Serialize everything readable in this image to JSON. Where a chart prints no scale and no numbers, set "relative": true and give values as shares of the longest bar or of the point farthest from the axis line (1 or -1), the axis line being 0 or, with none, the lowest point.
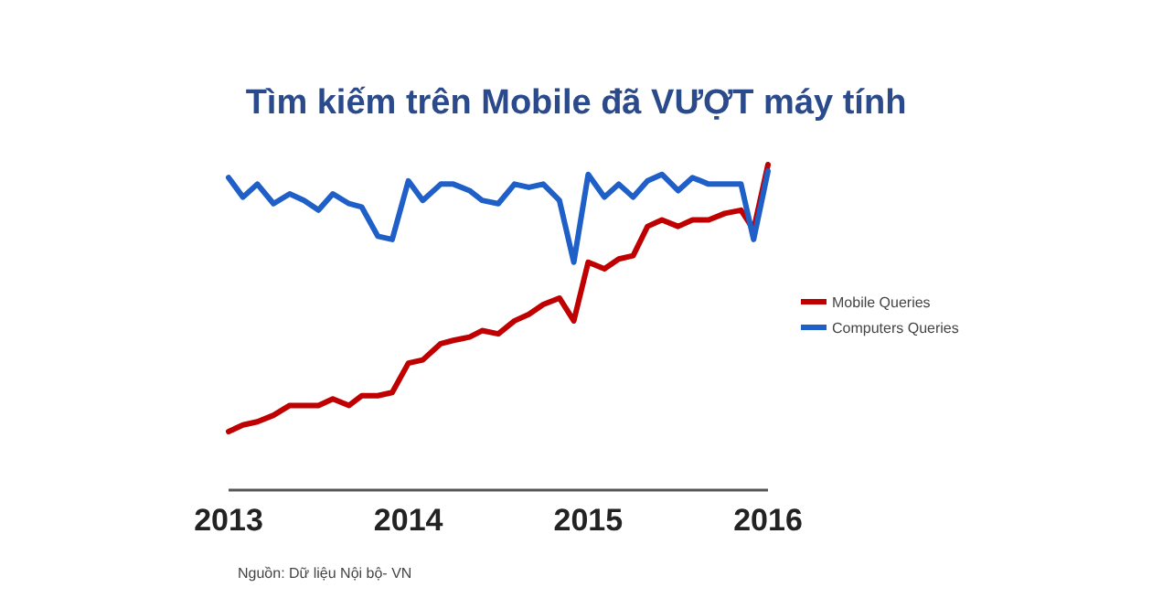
{
  "chart_data": {
    "type": "line",
    "title": "Tìm kiếm trên Mobile đã VƯỢT máy tính",
    "relative": true,
    "x": [
      2013,
      2013.08,
      2013.16,
      2013.25,
      2013.34,
      2013.42,
      2013.5,
      2013.58,
      2013.67,
      2013.74,
      2013.83,
      2013.91,
      2014,
      2014.08,
      2014.18,
      2014.25,
      2014.34,
      2014.41,
      2014.5,
      2014.59,
      2014.67,
      2014.75,
      2014.84,
      2014.92,
      2015,
      2015.09,
      2015.17,
      2015.25,
      2015.33,
      2015.41,
      2015.5,
      2015.58,
      2015.67,
      2015.76,
      2015.85,
      2015.92,
      2016
    ],
    "xlim": [
      2013,
      2016
    ],
    "xticks": [
      2013,
      2014,
      2015,
      2016
    ],
    "series": [
      {
        "name": "Mobile Queries",
        "color": "#c00000",
        "values": [
          0.18,
          0.2,
          0.21,
          0.23,
          0.26,
          0.26,
          0.26,
          0.28,
          0.26,
          0.29,
          0.29,
          0.3,
          0.39,
          0.4,
          0.45,
          0.46,
          0.47,
          0.49,
          0.48,
          0.52,
          0.54,
          0.57,
          0.59,
          0.52,
          0.7,
          0.68,
          0.71,
          0.72,
          0.81,
          0.83,
          0.81,
          0.83,
          0.83,
          0.85,
          0.86,
          0.8,
          1
        ]
      },
      {
        "name": "Computers Queries",
        "color": "#1f5fc8",
        "values": [
          0.96,
          0.9,
          0.94,
          0.88,
          0.91,
          0.89,
          0.86,
          0.91,
          0.88,
          0.87,
          0.78,
          0.77,
          0.95,
          0.89,
          0.94,
          0.94,
          0.92,
          0.89,
          0.88,
          0.94,
          0.93,
          0.94,
          0.89,
          0.7,
          0.97,
          0.9,
          0.94,
          0.9,
          0.95,
          0.97,
          0.92,
          0.96,
          0.94,
          0.94,
          0.94,
          0.77,
          0.98
        ]
      }
    ],
    "legend": "right",
    "annotations": [
      "Nguồn: Dữ liệu Nội bộ- VN"
    ]
  }
}
